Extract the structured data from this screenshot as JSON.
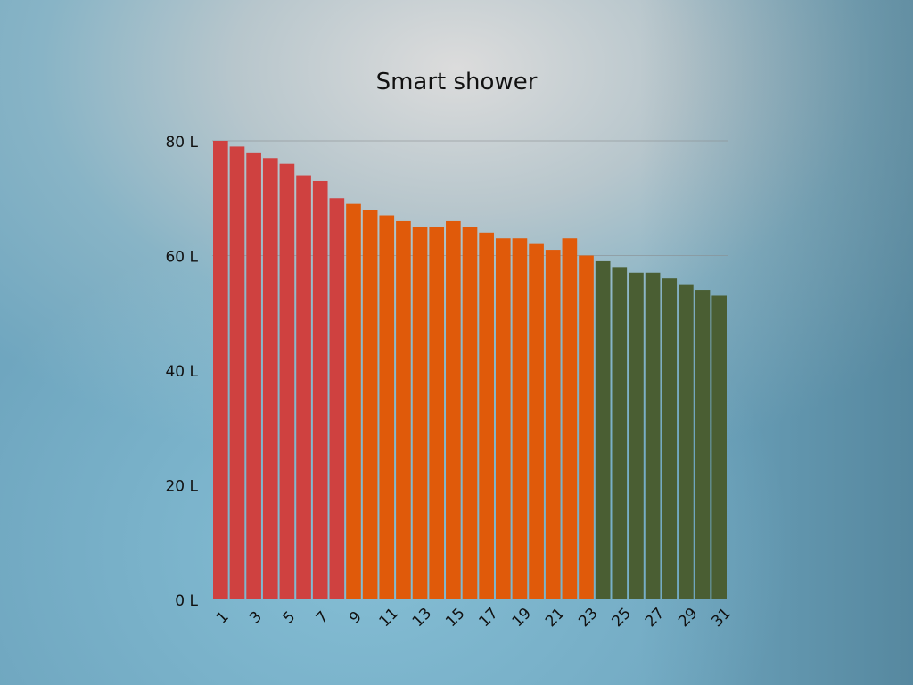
{
  "chart_data": {
    "type": "bar",
    "title": "Smart shower",
    "categories": [
      "1",
      "2",
      "3",
      "4",
      "5",
      "6",
      "7",
      "8",
      "9",
      "10",
      "11",
      "12",
      "13",
      "14",
      "15",
      "16",
      "17",
      "18",
      "19",
      "20",
      "21",
      "22",
      "23",
      "24",
      "25",
      "26",
      "27",
      "28",
      "29",
      "30",
      "31"
    ],
    "values": [
      80,
      79,
      78,
      77,
      76,
      74,
      73,
      70,
      69,
      68,
      67,
      66,
      65,
      65,
      66,
      65,
      64,
      63,
      63,
      62,
      61,
      63,
      60,
      59,
      58,
      57,
      57,
      56,
      55,
      54,
      53
    ],
    "colors": [
      "#cf4140",
      "#cf4140",
      "#cf4140",
      "#cf4140",
      "#cf4140",
      "#cf4140",
      "#cf4140",
      "#cf4140",
      "#e05a0a",
      "#e05a0a",
      "#e05a0a",
      "#e05a0a",
      "#e05a0a",
      "#e05a0a",
      "#e05a0a",
      "#e05a0a",
      "#e05a0a",
      "#e05a0a",
      "#e05a0a",
      "#e05a0a",
      "#e05a0a",
      "#e05a0a",
      "#e05a0a",
      "#4a5e33",
      "#4a5e33",
      "#4a5e33",
      "#4a5e33",
      "#4a5e33",
      "#4a5e33",
      "#4a5e33",
      "#4a5e33"
    ],
    "x_tick_labels": [
      "1",
      "3",
      "5",
      "7",
      "9",
      "11",
      "13",
      "15",
      "17",
      "19",
      "21",
      "23",
      "25",
      "27",
      "29",
      "31"
    ],
    "y_ticks": [
      "0 L",
      "20 L",
      "40 L",
      "60 L",
      "80 L"
    ],
    "y_tick_values": [
      0,
      20,
      40,
      60,
      80
    ],
    "gridlines_at": [
      60,
      80
    ],
    "ylim": [
      0,
      80
    ],
    "xlabel": "",
    "ylabel": ""
  }
}
